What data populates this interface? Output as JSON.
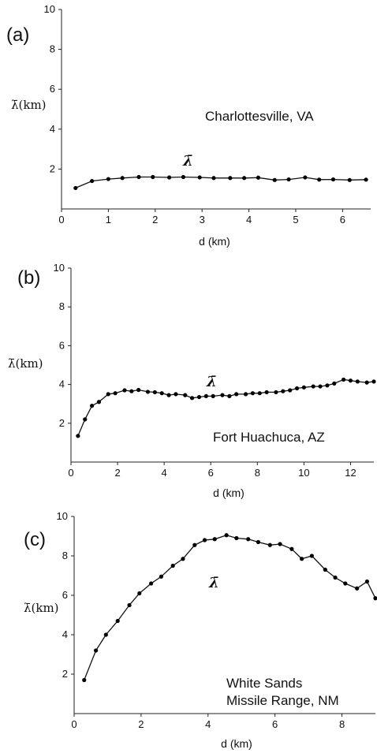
{
  "chart_data": [
    {
      "type": "line",
      "panel_label": "(a)",
      "location": "Charlottesville, VA",
      "xlabel": "d (km)",
      "ylabel": "λ̄(km)",
      "series_label": "λ̄",
      "xlim": [
        0,
        6.6
      ],
      "ylim": [
        0,
        10
      ],
      "xticks": [
        "0",
        "1",
        "2",
        "3",
        "4",
        "5",
        "6"
      ],
      "yticks": [
        "2",
        "4",
        "6",
        "8",
        "10"
      ],
      "series": [
        {
          "x": [
            0.3,
            0.65,
            1.0,
            1.3,
            1.65,
            1.95,
            2.3,
            2.6,
            2.95,
            3.25,
            3.6,
            3.9,
            4.2,
            4.55,
            4.85,
            5.2,
            5.5,
            5.8,
            6.15,
            6.5
          ],
          "y": [
            1.05,
            1.4,
            1.5,
            1.55,
            1.6,
            1.6,
            1.58,
            1.6,
            1.58,
            1.55,
            1.55,
            1.55,
            1.57,
            1.45,
            1.48,
            1.58,
            1.47,
            1.48,
            1.45,
            1.47
          ]
        }
      ]
    },
    {
      "type": "line",
      "panel_label": "(b)",
      "location": "Fort Huachuca, AZ",
      "xlabel": "d (km)",
      "ylabel": "λ̄(km)",
      "series_label": "λ̄",
      "xlim": [
        0,
        13
      ],
      "ylim": [
        0,
        10
      ],
      "xticks": [
        "0",
        "2",
        "4",
        "6",
        "8",
        "10",
        "12"
      ],
      "yticks": [
        "2",
        "4",
        "6",
        "8",
        "10"
      ],
      "series": [
        {
          "x": [
            0.3,
            0.6,
            0.9,
            1.2,
            1.6,
            1.9,
            2.3,
            2.6,
            2.9,
            3.3,
            3.6,
            3.9,
            4.2,
            4.5,
            4.9,
            5.2,
            5.5,
            5.8,
            6.1,
            6.5,
            6.8,
            7.1,
            7.5,
            7.8,
            8.1,
            8.4,
            8.8,
            9.1,
            9.4,
            9.7,
            10.0,
            10.4,
            10.7,
            11.0,
            11.3,
            11.7,
            12.0,
            12.3,
            12.7,
            13.0
          ],
          "y": [
            1.35,
            2.2,
            2.9,
            3.1,
            3.5,
            3.55,
            3.7,
            3.65,
            3.72,
            3.62,
            3.6,
            3.55,
            3.45,
            3.5,
            3.45,
            3.3,
            3.35,
            3.4,
            3.4,
            3.45,
            3.4,
            3.5,
            3.5,
            3.55,
            3.55,
            3.6,
            3.6,
            3.65,
            3.7,
            3.8,
            3.85,
            3.9,
            3.9,
            3.95,
            4.05,
            4.25,
            4.2,
            4.15,
            4.1,
            4.15
          ]
        }
      ]
    },
    {
      "type": "line",
      "panel_label": "(c)",
      "location_line1": "White Sands",
      "location_line2": "Missile Range, NM",
      "xlabel": "d (km)",
      "ylabel": "λ̄(km)",
      "series_label": "λ̄",
      "xlim": [
        0,
        9
      ],
      "ylim": [
        0,
        10
      ],
      "xticks": [
        "0",
        "2",
        "4",
        "6",
        "8"
      ],
      "yticks": [
        "2",
        "4",
        "6",
        "8",
        "10"
      ],
      "series": [
        {
          "x": [
            0.3,
            0.65,
            0.95,
            1.3,
            1.65,
            1.95,
            2.3,
            2.6,
            2.95,
            3.25,
            3.6,
            3.9,
            4.2,
            4.55,
            4.85,
            5.2,
            5.5,
            5.85,
            6.15,
            6.5,
            6.8,
            7.1,
            7.5,
            7.8,
            8.1,
            8.45,
            8.75,
            9.0
          ],
          "y": [
            1.7,
            3.2,
            4.0,
            4.7,
            5.5,
            6.1,
            6.6,
            6.95,
            7.5,
            7.85,
            8.55,
            8.8,
            8.85,
            9.05,
            8.9,
            8.85,
            8.7,
            8.55,
            8.6,
            8.35,
            7.85,
            8.0,
            7.3,
            6.9,
            6.6,
            6.35,
            6.7,
            5.85
          ]
        }
      ]
    }
  ]
}
